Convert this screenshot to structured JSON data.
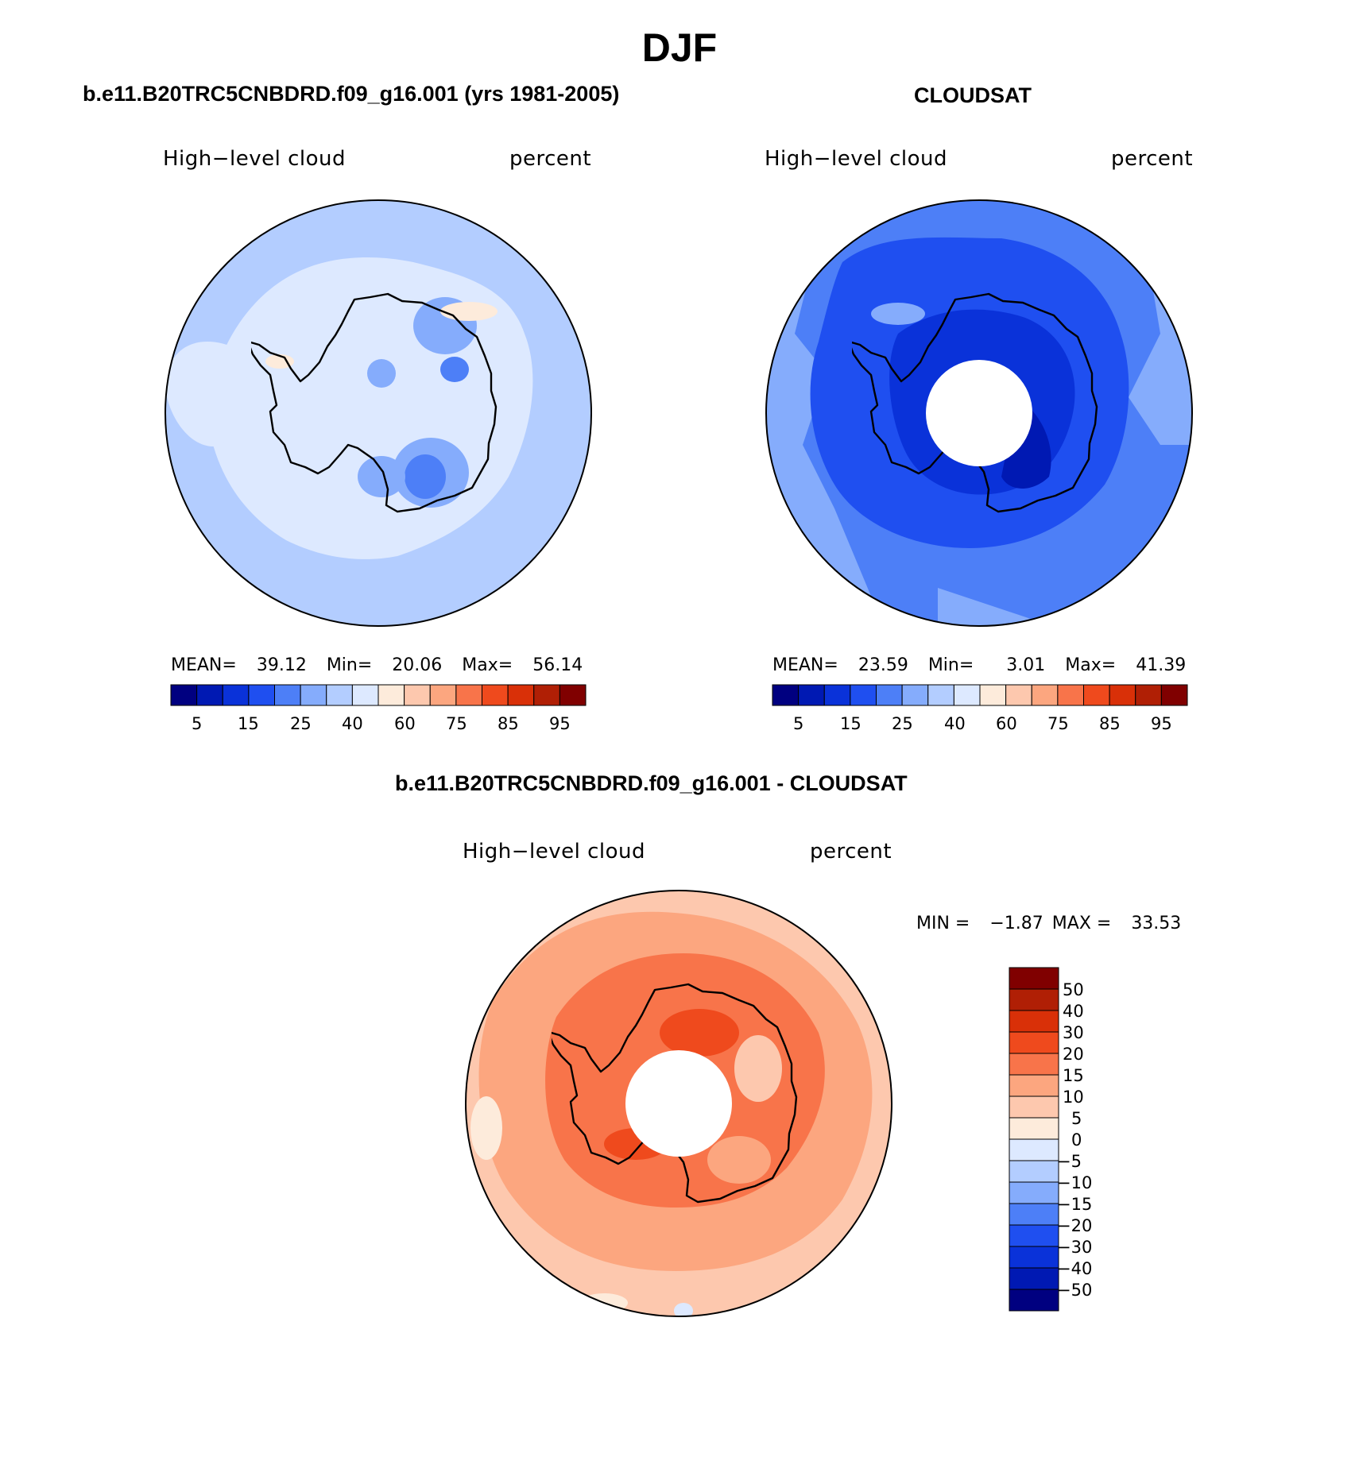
{
  "figure": {
    "title": "DJF",
    "bottom_title": "b.e11.B20TRC5CNBDRD.f09_g16.001 - CLOUDSAT"
  },
  "panels": [
    {
      "id": "model",
      "title": "b.e11.B20TRC5CNBDRD.f09_g16.001 (yrs 1981-2005)",
      "left_string": "High−level cloud",
      "right_string": "percent",
      "stats": {
        "mean_label": "MEAN=",
        "mean": "39.12",
        "min_label": "Min=",
        "min": "20.06",
        "max_label": "Max=",
        "max": "56.14"
      },
      "colorbar_ticks": [
        "5",
        "15",
        "25",
        "40",
        "60",
        "75",
        "85",
        "95"
      ]
    },
    {
      "id": "cloudsat",
      "title": "CLOUDSAT",
      "left_string": "High−level cloud",
      "right_string": "percent",
      "stats": {
        "mean_label": "MEAN=",
        "mean": "23.59",
        "min_label": "Min=",
        "min": "3.01",
        "max_label": "Max=",
        "max": "41.39"
      },
      "colorbar_ticks": [
        "5",
        "15",
        "25",
        "40",
        "60",
        "75",
        "85",
        "95"
      ]
    },
    {
      "id": "difference",
      "left_string": "High−level cloud",
      "right_string": "percent",
      "minmax": {
        "min_label": "MIN =",
        "min": "−1.87",
        "max_label": "MAX =",
        "max": "33.53"
      },
      "colorbar_ticks": [
        "50",
        "40",
        "30",
        "20",
        "15",
        "10",
        "5",
        "0",
        "−5",
        "−10",
        "−15",
        "−20",
        "−30",
        "−40",
        "−50"
      ]
    }
  ],
  "colormaps": {
    "abs_levels": [
      "#000080",
      "#0019b3",
      "#0a32d9",
      "#1f4ff0",
      "#4d7ff7",
      "#85acfc",
      "#b3cdff",
      "#dde9ff",
      "#fdebdb",
      "#fdc8ae",
      "#fca67f",
      "#f8744a",
      "#ef4a1d",
      "#d93008",
      "#b01f05",
      "#800000"
    ],
    "diff_levels_top_to_bottom": [
      "#800000",
      "#b01f05",
      "#d93008",
      "#ef4a1d",
      "#f8744a",
      "#fca67f",
      "#fdc8ae",
      "#fdebdb",
      "#dde9ff",
      "#b3cdff",
      "#85acfc",
      "#4d7ff7",
      "#1f4ff0",
      "#0a32d9",
      "#0019b3",
      "#000080"
    ]
  }
}
